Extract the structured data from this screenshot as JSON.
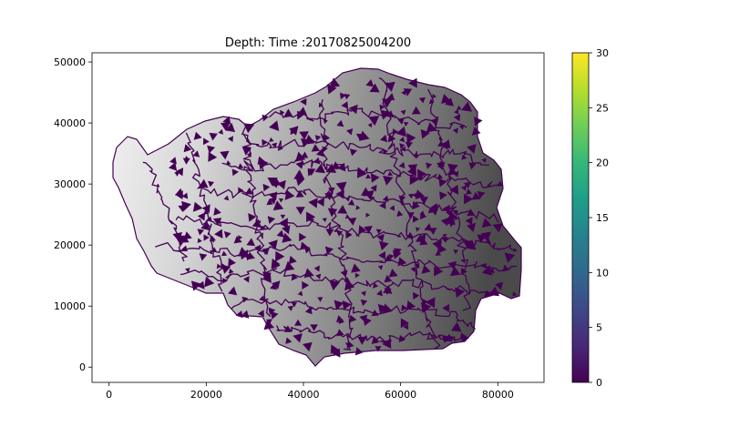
{
  "chart_data": {
    "type": "heatmap",
    "title": "Depth: Time :20170825004200",
    "xlabel": "",
    "ylabel": "",
    "xlim": [
      -3500,
      89500
    ],
    "ylim": [
      -2500,
      51500
    ],
    "xticks": [
      0,
      20000,
      40000,
      60000,
      80000
    ],
    "yticks": [
      0,
      10000,
      20000,
      30000,
      40000,
      50000
    ],
    "colorbar": {
      "colormap": "viridis",
      "min": 0,
      "max": 30,
      "ticks": [
        0,
        5,
        10,
        15,
        20,
        25,
        30
      ]
    },
    "underlay": "grayscale elevation (light in west, dark in east)",
    "colors": {
      "channel": "#440154",
      "viridis": [
        "#440154",
        "#482878",
        "#3e4989",
        "#31688e",
        "#26828e",
        "#1f9e89",
        "#35b779",
        "#6ece58",
        "#b5de2b",
        "#fde725"
      ]
    },
    "grid": false
  }
}
